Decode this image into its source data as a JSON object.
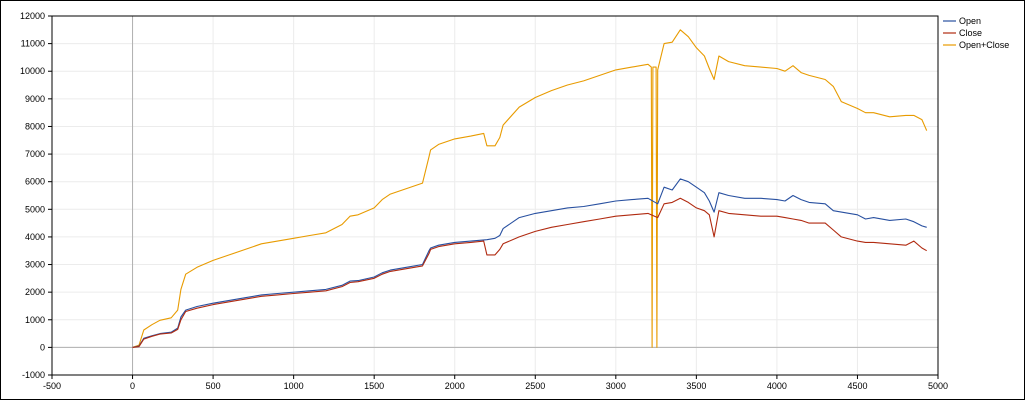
{
  "chart_data": {
    "type": "line",
    "title": "",
    "xlabel": "",
    "ylabel": "",
    "xlim": [
      -500,
      5000
    ],
    "ylim": [
      -1000,
      12000
    ],
    "xticks": [
      -500,
      0,
      500,
      1000,
      1500,
      2000,
      2500,
      3000,
      3500,
      4000,
      4500,
      5000
    ],
    "yticks": [
      -1000,
      0,
      1000,
      2000,
      3000,
      4000,
      5000,
      6000,
      7000,
      8000,
      9000,
      10000,
      11000,
      12000
    ],
    "grid": true,
    "legend_position": "top-right",
    "series": [
      {
        "name": "Open",
        "color": "#2850a0",
        "x": [
          0,
          40,
          70,
          120,
          170,
          240,
          280,
          300,
          330,
          400,
          500,
          600,
          700,
          800,
          900,
          1000,
          1100,
          1200,
          1300,
          1350,
          1400,
          1500,
          1550,
          1600,
          1700,
          1800,
          1840,
          1850,
          1900,
          2000,
          2100,
          2200,
          2250,
          2280,
          2300,
          2400,
          2500,
          2600,
          2700,
          2800,
          2900,
          3000,
          3100,
          3200,
          3260,
          3300,
          3350,
          3400,
          3450,
          3500,
          3550,
          3580,
          3610,
          3640,
          3700,
          3800,
          3900,
          4000,
          4050,
          4100,
          4150,
          4200,
          4300,
          4350,
          4400,
          4500,
          4550,
          4600,
          4700,
          4800,
          4850,
          4900,
          4930
        ],
        "y": [
          0,
          50,
          330,
          420,
          500,
          550,
          700,
          1100,
          1350,
          1480,
          1600,
          1700,
          1800,
          1900,
          1950,
          2000,
          2050,
          2100,
          2250,
          2400,
          2420,
          2550,
          2700,
          2800,
          2900,
          3000,
          3500,
          3600,
          3700,
          3800,
          3850,
          3900,
          3950,
          4050,
          4300,
          4700,
          4850,
          4950,
          5050,
          5100,
          5200,
          5300,
          5350,
          5400,
          5200,
          5800,
          5700,
          6100,
          6000,
          5800,
          5600,
          5300,
          4900,
          5600,
          5500,
          5400,
          5400,
          5350,
          5300,
          5500,
          5350,
          5250,
          5200,
          4950,
          4900,
          4800,
          4650,
          4700,
          4600,
          4650,
          4550,
          4400,
          4350
        ]
      },
      {
        "name": "Close",
        "color": "#b02a10",
        "x": [
          0,
          40,
          70,
          120,
          170,
          240,
          280,
          300,
          330,
          400,
          500,
          600,
          700,
          800,
          900,
          1000,
          1100,
          1200,
          1300,
          1350,
          1400,
          1500,
          1550,
          1600,
          1700,
          1800,
          1840,
          1850,
          1900,
          2000,
          2100,
          2180,
          2200,
          2250,
          2280,
          2300,
          2400,
          2500,
          2600,
          2700,
          2800,
          2900,
          3000,
          3100,
          3200,
          3260,
          3300,
          3350,
          3400,
          3450,
          3500,
          3550,
          3580,
          3610,
          3640,
          3700,
          3800,
          3900,
          4000,
          4050,
          4100,
          4150,
          4200,
          4300,
          4350,
          4400,
          4500,
          4550,
          4600,
          4700,
          4800,
          4850,
          4900,
          4930
        ],
        "y": [
          0,
          30,
          300,
          400,
          480,
          520,
          650,
          1000,
          1300,
          1420,
          1550,
          1650,
          1750,
          1850,
          1900,
          1950,
          2000,
          2050,
          2200,
          2350,
          2380,
          2500,
          2650,
          2750,
          2850,
          2950,
          3400,
          3550,
          3650,
          3750,
          3800,
          3850,
          3350,
          3350,
          3550,
          3750,
          4000,
          4200,
          4350,
          4450,
          4550,
          4650,
          4750,
          4800,
          4850,
          4700,
          5200,
          5250,
          5400,
          5250,
          5050,
          4950,
          4800,
          4000,
          4950,
          4850,
          4800,
          4750,
          4750,
          4700,
          4650,
          4600,
          4500,
          4500,
          4250,
          4000,
          3850,
          3800,
          3800,
          3750,
          3700,
          3850,
          3600,
          3500
        ]
      },
      {
        "name": "Open+Close",
        "color": "#e89b00",
        "x": [
          0,
          40,
          70,
          120,
          170,
          240,
          280,
          300,
          330,
          400,
          500,
          600,
          700,
          800,
          900,
          1000,
          1100,
          1200,
          1300,
          1350,
          1400,
          1500,
          1550,
          1600,
          1700,
          1800,
          1840,
          1850,
          1900,
          2000,
          2100,
          2180,
          2200,
          2250,
          2280,
          2300,
          2400,
          2500,
          2600,
          2700,
          2800,
          2900,
          3000,
          3100,
          3200,
          3220,
          3225,
          3230,
          3250,
          3255,
          3260,
          3300,
          3350,
          3400,
          3450,
          3500,
          3550,
          3580,
          3610,
          3640,
          3700,
          3800,
          3900,
          4000,
          4050,
          4100,
          4150,
          4200,
          4300,
          4350,
          4400,
          4500,
          4550,
          4600,
          4700,
          4800,
          4850,
          4900,
          4930
        ],
        "y": [
          0,
          80,
          630,
          820,
          980,
          1070,
          1350,
          2100,
          2650,
          2900,
          3150,
          3350,
          3550,
          3750,
          3850,
          3950,
          4050,
          4150,
          4450,
          4750,
          4800,
          5050,
          5350,
          5550,
          5750,
          5950,
          6900,
          7150,
          7350,
          7550,
          7650,
          7750,
          7300,
          7300,
          7600,
          8050,
          8700,
          9050,
          9300,
          9500,
          9650,
          9850,
          10050,
          10150,
          10250,
          10150,
          0,
          10150,
          10150,
          0,
          10050,
          11000,
          11050,
          11500,
          11250,
          10850,
          10550,
          10100,
          9700,
          10550,
          10350,
          10200,
          10150,
          10100,
          10000,
          10200,
          9950,
          9850,
          9700,
          9450,
          8900,
          8650,
          8500,
          8500,
          8350,
          8400,
          8400,
          8250,
          7850
        ]
      }
    ]
  }
}
